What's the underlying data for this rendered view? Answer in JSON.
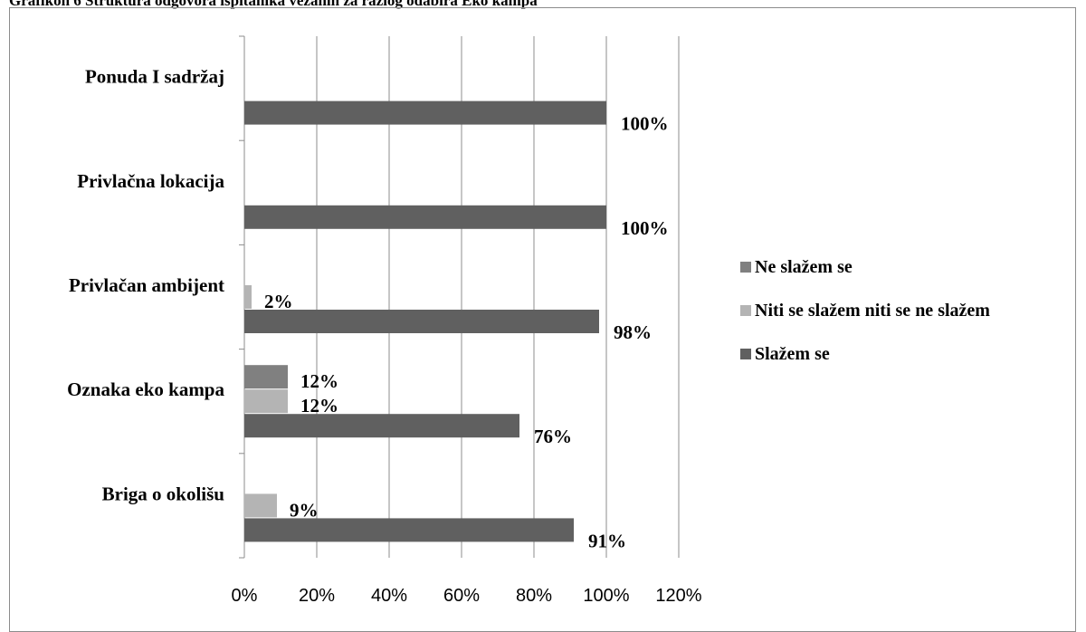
{
  "caption": "Grafikon 6 Struktura odgovora ispitanika vezanih za razlog odabira Eko kampa",
  "chart_data": {
    "type": "bar",
    "orientation": "horizontal",
    "categories": [
      "Briga o okolišu",
      "Oznaka eko kampa",
      "Privlačan ambijent",
      "Privlačna lokacija",
      "Ponuda I sadržaj"
    ],
    "series": [
      {
        "name": "Ne slažem se",
        "color": "#808080",
        "values": [
          null,
          12,
          null,
          null,
          null
        ],
        "labels": [
          "",
          "12%",
          "",
          "",
          ""
        ]
      },
      {
        "name": "Niti se slažem niti se ne slažem",
        "color": "#b4b4b4",
        "values": [
          9,
          12,
          2,
          null,
          null
        ],
        "labels": [
          "9%",
          "12%",
          "2%",
          "",
          ""
        ]
      },
      {
        "name": "Slažem se",
        "color": "#606060",
        "values": [
          91,
          76,
          98,
          100,
          100
        ],
        "labels": [
          "91%",
          "76%",
          "98%",
          "100%",
          "100%"
        ]
      }
    ],
    "xlim": [
      0,
      120
    ],
    "xticks": [
      0,
      20,
      40,
      60,
      80,
      100,
      120
    ],
    "xtick_labels": [
      "0%",
      "20%",
      "40%",
      "60%",
      "80%",
      "100%",
      "120%"
    ],
    "grid": true,
    "legend_position": "right"
  }
}
